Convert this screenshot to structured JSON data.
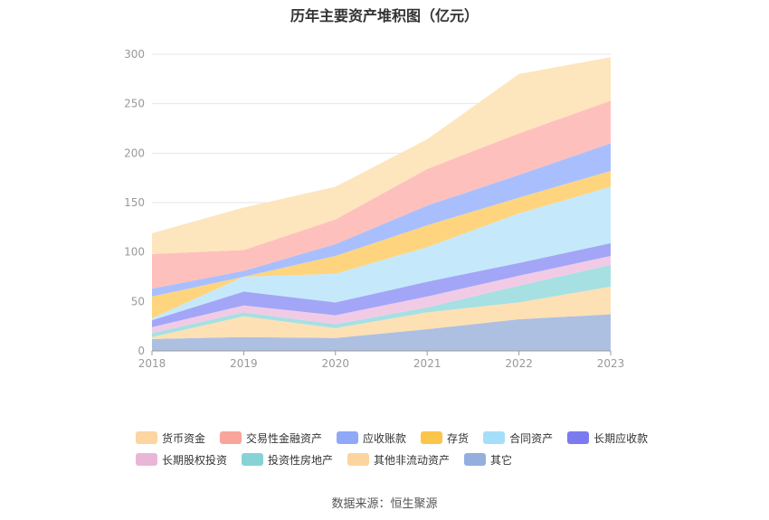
{
  "chart_data": {
    "type": "area",
    "stacked": true,
    "title": "历年主要资产堆积图（亿元）",
    "x": [
      "2018",
      "2019",
      "2020",
      "2021",
      "2022",
      "2023"
    ],
    "ylim": [
      0,
      300
    ],
    "yticks": [
      0,
      50,
      100,
      150,
      200,
      250,
      300
    ],
    "grid": true,
    "legend_position": "bottom",
    "series": [
      {
        "name": "其它",
        "color": "#adc0e2",
        "values": [
          12,
          14,
          13,
          22,
          32,
          37
        ]
      },
      {
        "name": "其他非流动资产",
        "color": "#fde0b4",
        "values": [
          2,
          21,
          10,
          17,
          17,
          28
        ]
      },
      {
        "name": "投资性房地产",
        "color": "#a6e0e2",
        "values": [
          4,
          4,
          4,
          5,
          17,
          22
        ]
      },
      {
        "name": "长期股权投资",
        "color": "#f1cbe5",
        "values": [
          6,
          7,
          9,
          11,
          10,
          9
        ]
      },
      {
        "name": "长期应收款",
        "color": "#a3a6f7",
        "values": [
          7,
          14,
          13,
          15,
          13,
          13
        ]
      },
      {
        "name": "合同资产",
        "color": "#c5e9fb",
        "values": [
          2,
          15,
          29,
          35,
          50,
          57
        ]
      },
      {
        "name": "存货",
        "color": "#fed57e",
        "values": [
          22,
          0,
          18,
          22,
          16,
          16
        ]
      },
      {
        "name": "应收账款",
        "color": "#a9bffd",
        "values": [
          8,
          6,
          12,
          20,
          23,
          28
        ]
      },
      {
        "name": "交易性金融资产",
        "color": "#fec0bd",
        "values": [
          35,
          21,
          25,
          37,
          42,
          43
        ]
      },
      {
        "name": "货币资金",
        "color": "#fde5bd",
        "values": [
          21,
          43,
          33,
          30,
          60,
          44
        ]
      }
    ],
    "legend": [
      {
        "name": "货币资金",
        "color": "#fcd5a0"
      },
      {
        "name": "交易性金融资产",
        "color": "#f8a59c"
      },
      {
        "name": "应收账款",
        "color": "#8fa9f8"
      },
      {
        "name": "存货",
        "color": "#fbc54c"
      },
      {
        "name": "合同资产",
        "color": "#a5def8"
      },
      {
        "name": "长期应收款",
        "color": "#7b7bef"
      },
      {
        "name": "长期股权投资",
        "color": "#e9b6d8"
      },
      {
        "name": "投资性房地产",
        "color": "#86d3d6"
      },
      {
        "name": "其他非流动资产",
        "color": "#fcd59e"
      },
      {
        "name": "其它",
        "color": "#94aede"
      }
    ]
  },
  "source": "数据来源：恒生聚源"
}
